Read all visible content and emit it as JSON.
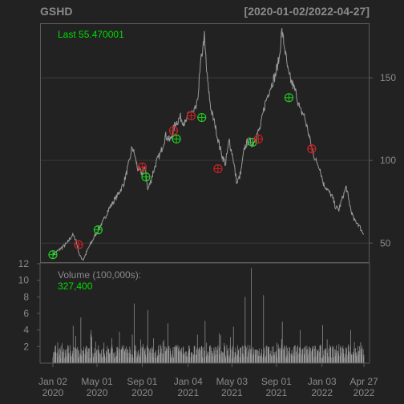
{
  "chart_data": {
    "type": "line",
    "title": "GSHD",
    "date_range": "[2020-01-02/2022-04-27]",
    "last_label": "Last 55.470001",
    "volume_label": "Volume (100,000s):",
    "volume_value": "327,400",
    "colors": {
      "background": "#222222",
      "line": "#9a9a9a",
      "grid": "#3a3a3a",
      "frame": "#5a5a5a",
      "text": "#8a8a8a",
      "accent_green": "#00dd00",
      "buy_marker": "#22cc22",
      "sell_marker": "#cc2222"
    },
    "price_yticks": [
      50,
      100,
      150
    ],
    "price_ylim": [
      38,
      183
    ],
    "volume_yticks": [
      2,
      4,
      6,
      8,
      10,
      12
    ],
    "volume_ylim": [
      0,
      12
    ],
    "x_ticks": [
      {
        "date": "2020-01-02",
        "line1": "Jan 02",
        "line2": "2020"
      },
      {
        "date": "2020-05-01",
        "line1": "May 01",
        "line2": "2020"
      },
      {
        "date": "2020-09-01",
        "line1": "Sep 01",
        "line2": "2020"
      },
      {
        "date": "2021-01-04",
        "line1": "Jan 04",
        "line2": "2021"
      },
      {
        "date": "2021-05-03",
        "line1": "May 03",
        "line2": "2021"
      },
      {
        "date": "2021-09-01",
        "line1": "Sep 01",
        "line2": "2021"
      },
      {
        "date": "2022-01-03",
        "line1": "Jan 03",
        "line2": "2022"
      },
      {
        "date": "2022-04-27",
        "line1": "Apr 27",
        "line2": "2022"
      }
    ],
    "price_series": [
      [
        "2020-01-02",
        43
      ],
      [
        "2020-01-20",
        46
      ],
      [
        "2020-02-10",
        50
      ],
      [
        "2020-02-25",
        55
      ],
      [
        "2020-03-05",
        52
      ],
      [
        "2020-03-16",
        42
      ],
      [
        "2020-03-25",
        40
      ],
      [
        "2020-04-08",
        47
      ],
      [
        "2020-04-20",
        52
      ],
      [
        "2020-05-04",
        58
      ],
      [
        "2020-05-18",
        63
      ],
      [
        "2020-06-01",
        70
      ],
      [
        "2020-06-15",
        75
      ],
      [
        "2020-06-29",
        80
      ],
      [
        "2020-07-13",
        86
      ],
      [
        "2020-07-27",
        98
      ],
      [
        "2020-08-05",
        108
      ],
      [
        "2020-08-12",
        103
      ],
      [
        "2020-08-20",
        95
      ],
      [
        "2020-09-01",
        92
      ],
      [
        "2020-09-10",
        96
      ],
      [
        "2020-09-16",
        82
      ],
      [
        "2020-09-25",
        88
      ],
      [
        "2020-10-08",
        98
      ],
      [
        "2020-10-22",
        105
      ],
      [
        "2020-11-04",
        115
      ],
      [
        "2020-11-16",
        112
      ],
      [
        "2020-11-30",
        122
      ],
      [
        "2020-12-14",
        126
      ],
      [
        "2020-12-28",
        122
      ],
      [
        "2021-01-08",
        130
      ],
      [
        "2021-01-19",
        128
      ],
      [
        "2021-01-29",
        134
      ],
      [
        "2021-02-08",
        160
      ],
      [
        "2021-02-17",
        175
      ],
      [
        "2021-02-25",
        150
      ],
      [
        "2021-03-08",
        130
      ],
      [
        "2021-03-18",
        122
      ],
      [
        "2021-03-29",
        110
      ],
      [
        "2021-04-08",
        102
      ],
      [
        "2021-04-16",
        98
      ],
      [
        "2021-04-26",
        112
      ],
      [
        "2021-05-06",
        102
      ],
      [
        "2021-05-17",
        86
      ],
      [
        "2021-05-27",
        92
      ],
      [
        "2021-06-07",
        108
      ],
      [
        "2021-06-17",
        112
      ],
      [
        "2021-06-29",
        110
      ],
      [
        "2021-07-09",
        115
      ],
      [
        "2021-07-20",
        120
      ],
      [
        "2021-07-30",
        132
      ],
      [
        "2021-08-09",
        140
      ],
      [
        "2021-08-19",
        146
      ],
      [
        "2021-08-30",
        152
      ],
      [
        "2021-09-09",
        162
      ],
      [
        "2021-09-16",
        178
      ],
      [
        "2021-09-24",
        168
      ],
      [
        "2021-10-04",
        152
      ],
      [
        "2021-10-15",
        146
      ],
      [
        "2021-10-26",
        140
      ],
      [
        "2021-11-05",
        130
      ],
      [
        "2021-11-15",
        128
      ],
      [
        "2021-11-26",
        118
      ],
      [
        "2021-12-06",
        108
      ],
      [
        "2021-12-17",
        100
      ],
      [
        "2021-12-28",
        96
      ],
      [
        "2022-01-07",
        86
      ],
      [
        "2022-01-19",
        82
      ],
      [
        "2022-01-31",
        78
      ],
      [
        "2022-02-09",
        72
      ],
      [
        "2022-02-18",
        70
      ],
      [
        "2022-03-01",
        78
      ],
      [
        "2022-03-10",
        84
      ],
      [
        "2022-03-21",
        72
      ],
      [
        "2022-03-31",
        64
      ],
      [
        "2022-04-11",
        62
      ],
      [
        "2022-04-20",
        58
      ],
      [
        "2022-04-27",
        55.47
      ]
    ],
    "markers": [
      {
        "date": "2020-01-02",
        "price": 43,
        "type": "buy"
      },
      {
        "date": "2020-03-12",
        "price": 49,
        "type": "sell"
      },
      {
        "date": "2020-05-04",
        "price": 58,
        "type": "buy"
      },
      {
        "date": "2020-09-01",
        "price": 96,
        "type": "sell"
      },
      {
        "date": "2020-09-11",
        "price": 90,
        "type": "buy"
      },
      {
        "date": "2020-11-25",
        "price": 118,
        "type": "sell"
      },
      {
        "date": "2020-12-03",
        "price": 113,
        "type": "buy"
      },
      {
        "date": "2021-01-12",
        "price": 127,
        "type": "sell"
      },
      {
        "date": "2021-02-10",
        "price": 126,
        "type": "buy"
      },
      {
        "date": "2021-03-26",
        "price": 95,
        "type": "sell"
      },
      {
        "date": "2021-06-28",
        "price": 111,
        "type": "buy"
      },
      {
        "date": "2021-07-14",
        "price": 113,
        "type": "sell"
      },
      {
        "date": "2021-10-05",
        "price": 138,
        "type": "buy"
      },
      {
        "date": "2021-12-06",
        "price": 107,
        "type": "sell"
      }
    ],
    "volume_peaks": [
      {
        "date": "2020-01-15",
        "value": 2.5
      },
      {
        "date": "2020-02-26",
        "value": 4.5
      },
      {
        "date": "2020-03-18",
        "value": 5.5
      },
      {
        "date": "2020-04-15",
        "value": 4.0
      },
      {
        "date": "2020-06-10",
        "value": 3.0
      },
      {
        "date": "2020-07-01",
        "value": 3.8
      },
      {
        "date": "2020-08-10",
        "value": 7.2
      },
      {
        "date": "2020-09-16",
        "value": 6.4
      },
      {
        "date": "2020-11-10",
        "value": 4.8
      },
      {
        "date": "2021-02-19",
        "value": 5.1
      },
      {
        "date": "2021-03-30",
        "value": 3.6
      },
      {
        "date": "2021-05-07",
        "value": 4.4
      },
      {
        "date": "2021-06-08",
        "value": 8.0
      },
      {
        "date": "2021-06-25",
        "value": 11.5
      },
      {
        "date": "2021-07-28",
        "value": 8.2
      },
      {
        "date": "2021-09-17",
        "value": 5.0
      },
      {
        "date": "2021-11-05",
        "value": 4.0
      },
      {
        "date": "2022-01-05",
        "value": 4.6
      },
      {
        "date": "2022-03-22",
        "value": 4.0
      }
    ]
  }
}
